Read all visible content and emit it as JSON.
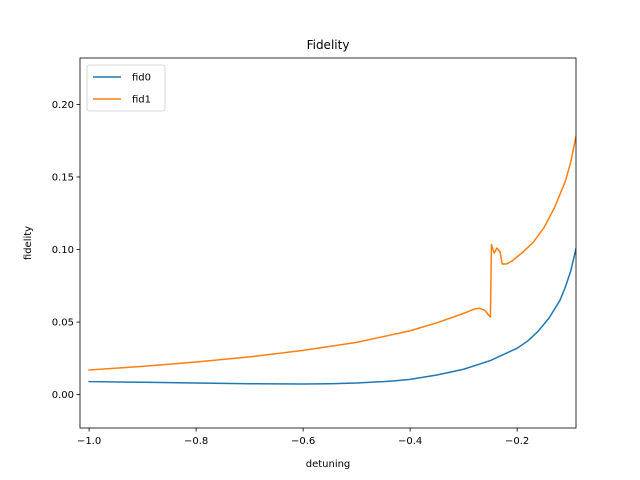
{
  "chart_data": {
    "type": "line",
    "title": "Fidelity",
    "xlabel": "detuning",
    "ylabel": "fidelity",
    "xlim": [
      -1.017,
      -0.09
    ],
    "ylim": [
      -0.023,
      0.232
    ],
    "x_ticks": [
      -1.0,
      -0.8,
      -0.6,
      -0.4,
      -0.2
    ],
    "x_tick_labels": [
      "−1.0",
      "−0.8",
      "−0.6",
      "−0.4",
      "−0.2"
    ],
    "y_ticks": [
      0.0,
      0.05,
      0.1,
      0.15,
      0.2
    ],
    "y_tick_labels": [
      "0.00",
      "0.05",
      "0.10",
      "0.15",
      "0.20"
    ],
    "grid": false,
    "legend_position": "upper left",
    "series": [
      {
        "name": "fid0",
        "color": "#1f77b4",
        "points": [
          [
            -1.0,
            0.009
          ],
          [
            -0.9,
            0.0085
          ],
          [
            -0.8,
            0.008
          ],
          [
            -0.7,
            0.0075
          ],
          [
            -0.6,
            0.0073
          ],
          [
            -0.55,
            0.0075
          ],
          [
            -0.5,
            0.008
          ],
          [
            -0.45,
            0.009
          ],
          [
            -0.43,
            0.0095
          ],
          [
            -0.4,
            0.0105
          ],
          [
            -0.35,
            0.0135
          ],
          [
            -0.3,
            0.0175
          ],
          [
            -0.25,
            0.0235
          ],
          [
            -0.2,
            0.032
          ],
          [
            -0.18,
            0.037
          ],
          [
            -0.16,
            0.044
          ],
          [
            -0.14,
            0.053
          ],
          [
            -0.12,
            0.065
          ],
          [
            -0.11,
            0.074
          ],
          [
            -0.1,
            0.085
          ],
          [
            -0.09,
            0.1005
          ]
        ]
      },
      {
        "name": "fid1",
        "color": "#ff7f0e",
        "points": [
          [
            -1.0,
            0.017
          ],
          [
            -0.9,
            0.0195
          ],
          [
            -0.8,
            0.0225
          ],
          [
            -0.7,
            0.026
          ],
          [
            -0.6,
            0.0305
          ],
          [
            -0.5,
            0.036
          ],
          [
            -0.4,
            0.044
          ],
          [
            -0.35,
            0.0495
          ],
          [
            -0.3,
            0.056
          ],
          [
            -0.28,
            0.059
          ],
          [
            -0.27,
            0.0595
          ],
          [
            -0.26,
            0.058
          ],
          [
            -0.255,
            0.0555
          ],
          [
            -0.25,
            0.0535
          ],
          [
            -0.248,
            0.1035
          ],
          [
            -0.243,
            0.0975
          ],
          [
            -0.238,
            0.101
          ],
          [
            -0.232,
            0.0985
          ],
          [
            -0.228,
            0.09
          ],
          [
            -0.22,
            0.09
          ],
          [
            -0.21,
            0.092
          ],
          [
            -0.19,
            0.098
          ],
          [
            -0.17,
            0.105
          ],
          [
            -0.15,
            0.115
          ],
          [
            -0.13,
            0.129
          ],
          [
            -0.11,
            0.147
          ],
          [
            -0.1,
            0.16
          ],
          [
            -0.09,
            0.178
          ]
        ]
      }
    ]
  }
}
